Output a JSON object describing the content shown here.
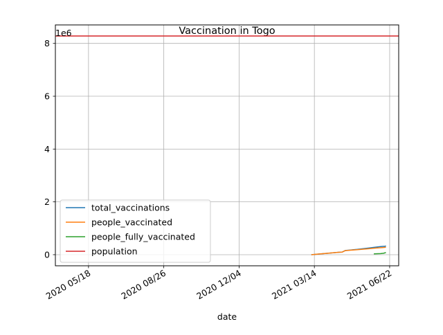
{
  "chart_data": {
    "type": "line",
    "title": "Vaccination in Togo",
    "xlabel": "date",
    "ylabel": "",
    "y_offset_label": "1e6",
    "grid": true,
    "legend_position": "lower-left",
    "xlim": [
      "2020-04-04",
      "2021-07-04"
    ],
    "ylim": [
      -420000,
      8700000
    ],
    "x_ticks": [
      {
        "date": "2020-05-18",
        "label": "2020 05/18"
      },
      {
        "date": "2020-08-26",
        "label": "2020 08/26"
      },
      {
        "date": "2020-12-04",
        "label": "2020 12/04"
      },
      {
        "date": "2021-03-14",
        "label": "2021 03/14"
      },
      {
        "date": "2021-06-22",
        "label": "2021 06/22"
      }
    ],
    "y_ticks": [
      {
        "value": 0,
        "label": "0"
      },
      {
        "value": 2000000,
        "label": "2"
      },
      {
        "value": 4000000,
        "label": "4"
      },
      {
        "value": 6000000,
        "label": "6"
      },
      {
        "value": 8000000,
        "label": "8"
      }
    ],
    "series": [
      {
        "name": "total_vaccinations",
        "color": "#1f77b4",
        "points": [
          [
            "2021-03-10",
            0
          ],
          [
            "2021-03-20",
            25000
          ],
          [
            "2021-04-01",
            55000
          ],
          [
            "2021-04-15",
            90000
          ],
          [
            "2021-04-20",
            100000
          ],
          [
            "2021-04-24",
            160000
          ],
          [
            "2021-05-10",
            200000
          ],
          [
            "2021-05-25",
            250000
          ],
          [
            "2021-06-05",
            290000
          ],
          [
            "2021-06-12",
            315000
          ],
          [
            "2021-06-16",
            320000
          ],
          [
            "2021-06-17",
            335000
          ]
        ]
      },
      {
        "name": "people_vaccinated",
        "color": "#ff7f0e",
        "points": [
          [
            "2021-03-10",
            0
          ],
          [
            "2021-03-20",
            25000
          ],
          [
            "2021-04-01",
            55000
          ],
          [
            "2021-04-15",
            90000
          ],
          [
            "2021-04-20",
            100000
          ],
          [
            "2021-04-24",
            155000
          ],
          [
            "2021-05-10",
            190000
          ],
          [
            "2021-05-25",
            225000
          ],
          [
            "2021-06-05",
            255000
          ],
          [
            "2021-06-12",
            270000
          ],
          [
            "2021-06-17",
            280000
          ]
        ]
      },
      {
        "name": "people_fully_vaccinated",
        "color": "#2ca02c",
        "points": [
          [
            "2021-06-01",
            30000
          ],
          [
            "2021-06-10",
            40000
          ],
          [
            "2021-06-14",
            55000
          ],
          [
            "2021-06-17",
            80000
          ]
        ]
      },
      {
        "name": "population",
        "color": "#d62728",
        "points": [
          [
            "2020-04-04",
            8280000
          ],
          [
            "2021-07-04",
            8280000
          ]
        ]
      }
    ]
  }
}
